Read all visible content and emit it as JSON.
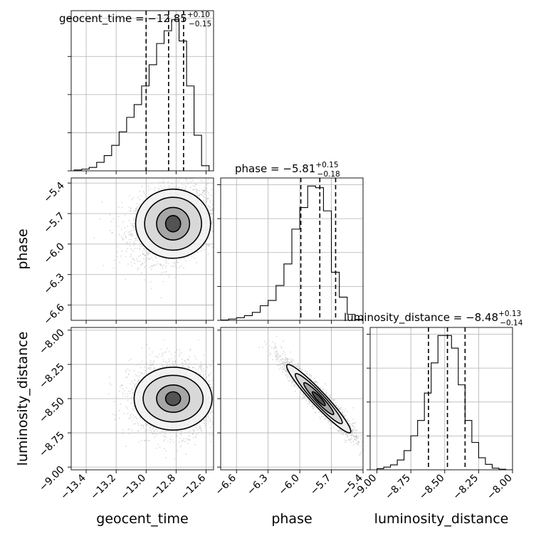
{
  "chart_data": [
    {
      "type": "histogram",
      "panel": "geocent_time-marginal",
      "title": {
        "name": "geocent_time",
        "median": "−12.85",
        "plus": "+0.10",
        "minus": "−0.15"
      },
      "xlim": [
        -13.5,
        -12.55
      ],
      "bin_edges": [
        -13.48,
        -13.43,
        -13.38,
        -13.33,
        -13.28,
        -13.23,
        -13.18,
        -13.13,
        -13.08,
        -13.03,
        -12.98,
        -12.93,
        -12.88,
        -12.83,
        -12.78,
        -12.73,
        -12.68,
        -12.63,
        -12.58
      ],
      "counts": [
        1,
        2,
        4,
        10,
        18,
        30,
        46,
        63,
        78,
        100,
        125,
        150,
        165,
        178,
        153,
        100,
        42,
        6
      ],
      "quantile_lines": [
        -13.0,
        -12.85,
        -12.75
      ],
      "grid": true
    },
    {
      "type": "histogram",
      "panel": "phase-marginal",
      "title": {
        "name": "phase",
        "median": "−5.81",
        "plus": "+0.15",
        "minus": "−0.18"
      },
      "xlim": [
        -6.75,
        -5.4
      ],
      "bin_edges": [
        -6.75,
        -6.675,
        -6.6,
        -6.525,
        -6.45,
        -6.375,
        -6.3,
        -6.225,
        -6.15,
        -6.075,
        -6.0,
        -5.925,
        -5.85,
        -5.775,
        -5.7,
        -5.625,
        -5.55,
        -5.475,
        -5.4
      ],
      "counts": [
        1,
        4,
        8,
        14,
        24,
        44,
        60,
        105,
        170,
        275,
        340,
        405,
        400,
        330,
        145,
        70,
        18,
        3
      ],
      "quantile_lines": [
        -5.99,
        -5.81,
        -5.66
      ],
      "grid": true
    },
    {
      "type": "histogram",
      "panel": "luminosity_distance-marginal",
      "title": {
        "name": "luminosity_distance",
        "median": "−8.48",
        "plus": "+0.13",
        "minus": "−0.14"
      },
      "xlim": [
        -9.05,
        -8.0
      ],
      "bin_edges": [
        -9.0,
        -8.95,
        -8.9,
        -8.85,
        -8.8,
        -8.75,
        -8.7,
        -8.65,
        -8.6,
        -8.55,
        -8.5,
        -8.45,
        -8.4,
        -8.35,
        -8.3,
        -8.25,
        -8.2,
        -8.15,
        -8.1,
        -8.05,
        -8.0
      ],
      "counts": [
        2,
        5,
        9,
        18,
        35,
        62,
        90,
        140,
        195,
        245,
        245,
        222,
        155,
        90,
        50,
        22,
        10,
        3,
        1,
        0
      ],
      "quantile_lines": [
        -8.62,
        -8.48,
        -8.35
      ],
      "grid": true
    },
    {
      "type": "scatter-density",
      "panel": "phase-vs-geocent_time",
      "x": "geocent_time",
      "y": "phase",
      "xlim": [
        -13.5,
        -12.55
      ],
      "ylim": [
        -6.75,
        -5.35
      ],
      "center": [
        -12.82,
        -5.8
      ],
      "sd": [
        0.14,
        0.18
      ],
      "correlation": 0.25,
      "contour_levels": [
        {
          "semi_axes": [
            0.05,
            0.08
          ]
        },
        {
          "semi_axes": [
            0.11,
            0.16
          ]
        },
        {
          "semi_axes": [
            0.19,
            0.26
          ]
        },
        {
          "semi_axes": [
            0.25,
            0.34
          ]
        }
      ],
      "grid": true
    },
    {
      "type": "scatter-density",
      "panel": "luminosity_distance-vs-geocent_time",
      "x": "geocent_time",
      "y": "luminosity_distance",
      "xlim": [
        -13.5,
        -12.55
      ],
      "ylim": [
        -9.02,
        -7.98
      ],
      "center": [
        -12.82,
        -8.5
      ],
      "sd": [
        0.14,
        0.13
      ],
      "correlation": 0.0,
      "contour_levels": [
        {
          "semi_axes": [
            0.05,
            0.05
          ]
        },
        {
          "semi_axes": [
            0.11,
            0.1
          ]
        },
        {
          "semi_axes": [
            0.2,
            0.17
          ]
        },
        {
          "semi_axes": [
            0.26,
            0.23
          ]
        }
      ],
      "grid": true
    },
    {
      "type": "scatter-density",
      "panel": "luminosity_distance-vs-phase",
      "x": "phase",
      "y": "luminosity_distance",
      "xlim": [
        -6.75,
        -5.4
      ],
      "ylim": [
        -9.02,
        -7.98
      ],
      "center": [
        -5.82,
        -8.5
      ],
      "sd": [
        0.17,
        0.14
      ],
      "correlation": -0.95,
      "contour_levels": [
        {
          "semi_axes": [
            0.06,
            0.018
          ]
        },
        {
          "semi_axes": [
            0.14,
            0.03
          ]
        },
        {
          "semi_axes": [
            0.22,
            0.045
          ]
        },
        {
          "semi_axes": [
            0.3,
            0.06
          ]
        }
      ],
      "grid": true
    }
  ],
  "ticks": {
    "geocent_time": [
      "−13.4",
      "−13.2",
      "−13.0",
      "−12.8",
      "−12.6"
    ],
    "phase": [
      "−6.6",
      "−6.3",
      "−6.0",
      "−5.7",
      "−5.4"
    ],
    "luminosity_distance_x": [
      "−9.00",
      "−8.75",
      "−8.50",
      "−8.25",
      "−8.00"
    ],
    "luminosity_distance_y": [
      "−8.00",
      "−8.25",
      "−8.50",
      "−8.75",
      "−9.00"
    ]
  },
  "axis_labels": {
    "x_left": "geocent_time",
    "x_mid": "phase",
    "x_right": "luminosity_distance",
    "y_mid": "phase",
    "y_bottom": "luminosity_distance"
  },
  "colors": {
    "line": "#000000",
    "grid": "#b0b0b0",
    "points": "#bdbdbd",
    "density_dark": "#333333"
  }
}
